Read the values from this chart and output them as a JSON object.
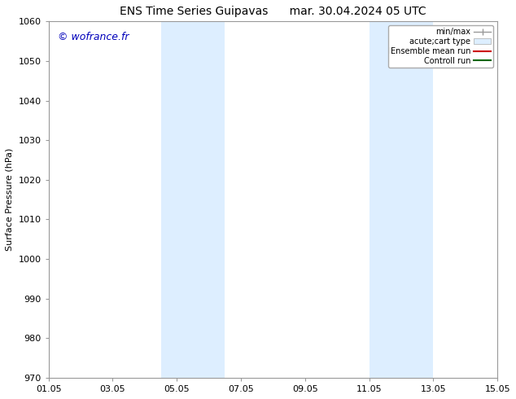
{
  "title_left": "ENS Time Series Guipavas",
  "title_right": "mar. 30.04.2024 05 UTC",
  "ylabel": "Surface Pressure (hPa)",
  "ylim": [
    970,
    1060
  ],
  "yticks": [
    970,
    980,
    990,
    1000,
    1010,
    1020,
    1030,
    1040,
    1050,
    1060
  ],
  "xtick_labels": [
    "01.05",
    "03.05",
    "05.05",
    "07.05",
    "09.05",
    "11.05",
    "13.05",
    "15.05"
  ],
  "xtick_positions": [
    0,
    2,
    4,
    6,
    8,
    10,
    12,
    14
  ],
  "xlim": [
    0,
    14
  ],
  "shaded_regions": [
    {
      "start": 3.5,
      "end": 5.5
    },
    {
      "start": 10.0,
      "end": 12.0
    }
  ],
  "shaded_color": "#ddeeff",
  "watermark": "© wofrance.fr",
  "watermark_color": "#0000bb",
  "legend_items": [
    {
      "label": "min/max",
      "color": "#999999",
      "lw": 1.0,
      "style": "minmax"
    },
    {
      "label": "acute;cart type",
      "color": "#ddeeff",
      "edge": "#aaaaaa",
      "lw": 0.5,
      "style": "band"
    },
    {
      "label": "Ensemble mean run",
      "color": "#cc0000",
      "lw": 1.5,
      "style": "line"
    },
    {
      "label": "Controll run",
      "color": "#006600",
      "lw": 1.5,
      "style": "line"
    }
  ],
  "bg_color": "#ffffff",
  "spine_color": "#999999",
  "title_fontsize": 10,
  "ylabel_fontsize": 8,
  "tick_fontsize": 8,
  "legend_fontsize": 7,
  "watermark_fontsize": 9
}
